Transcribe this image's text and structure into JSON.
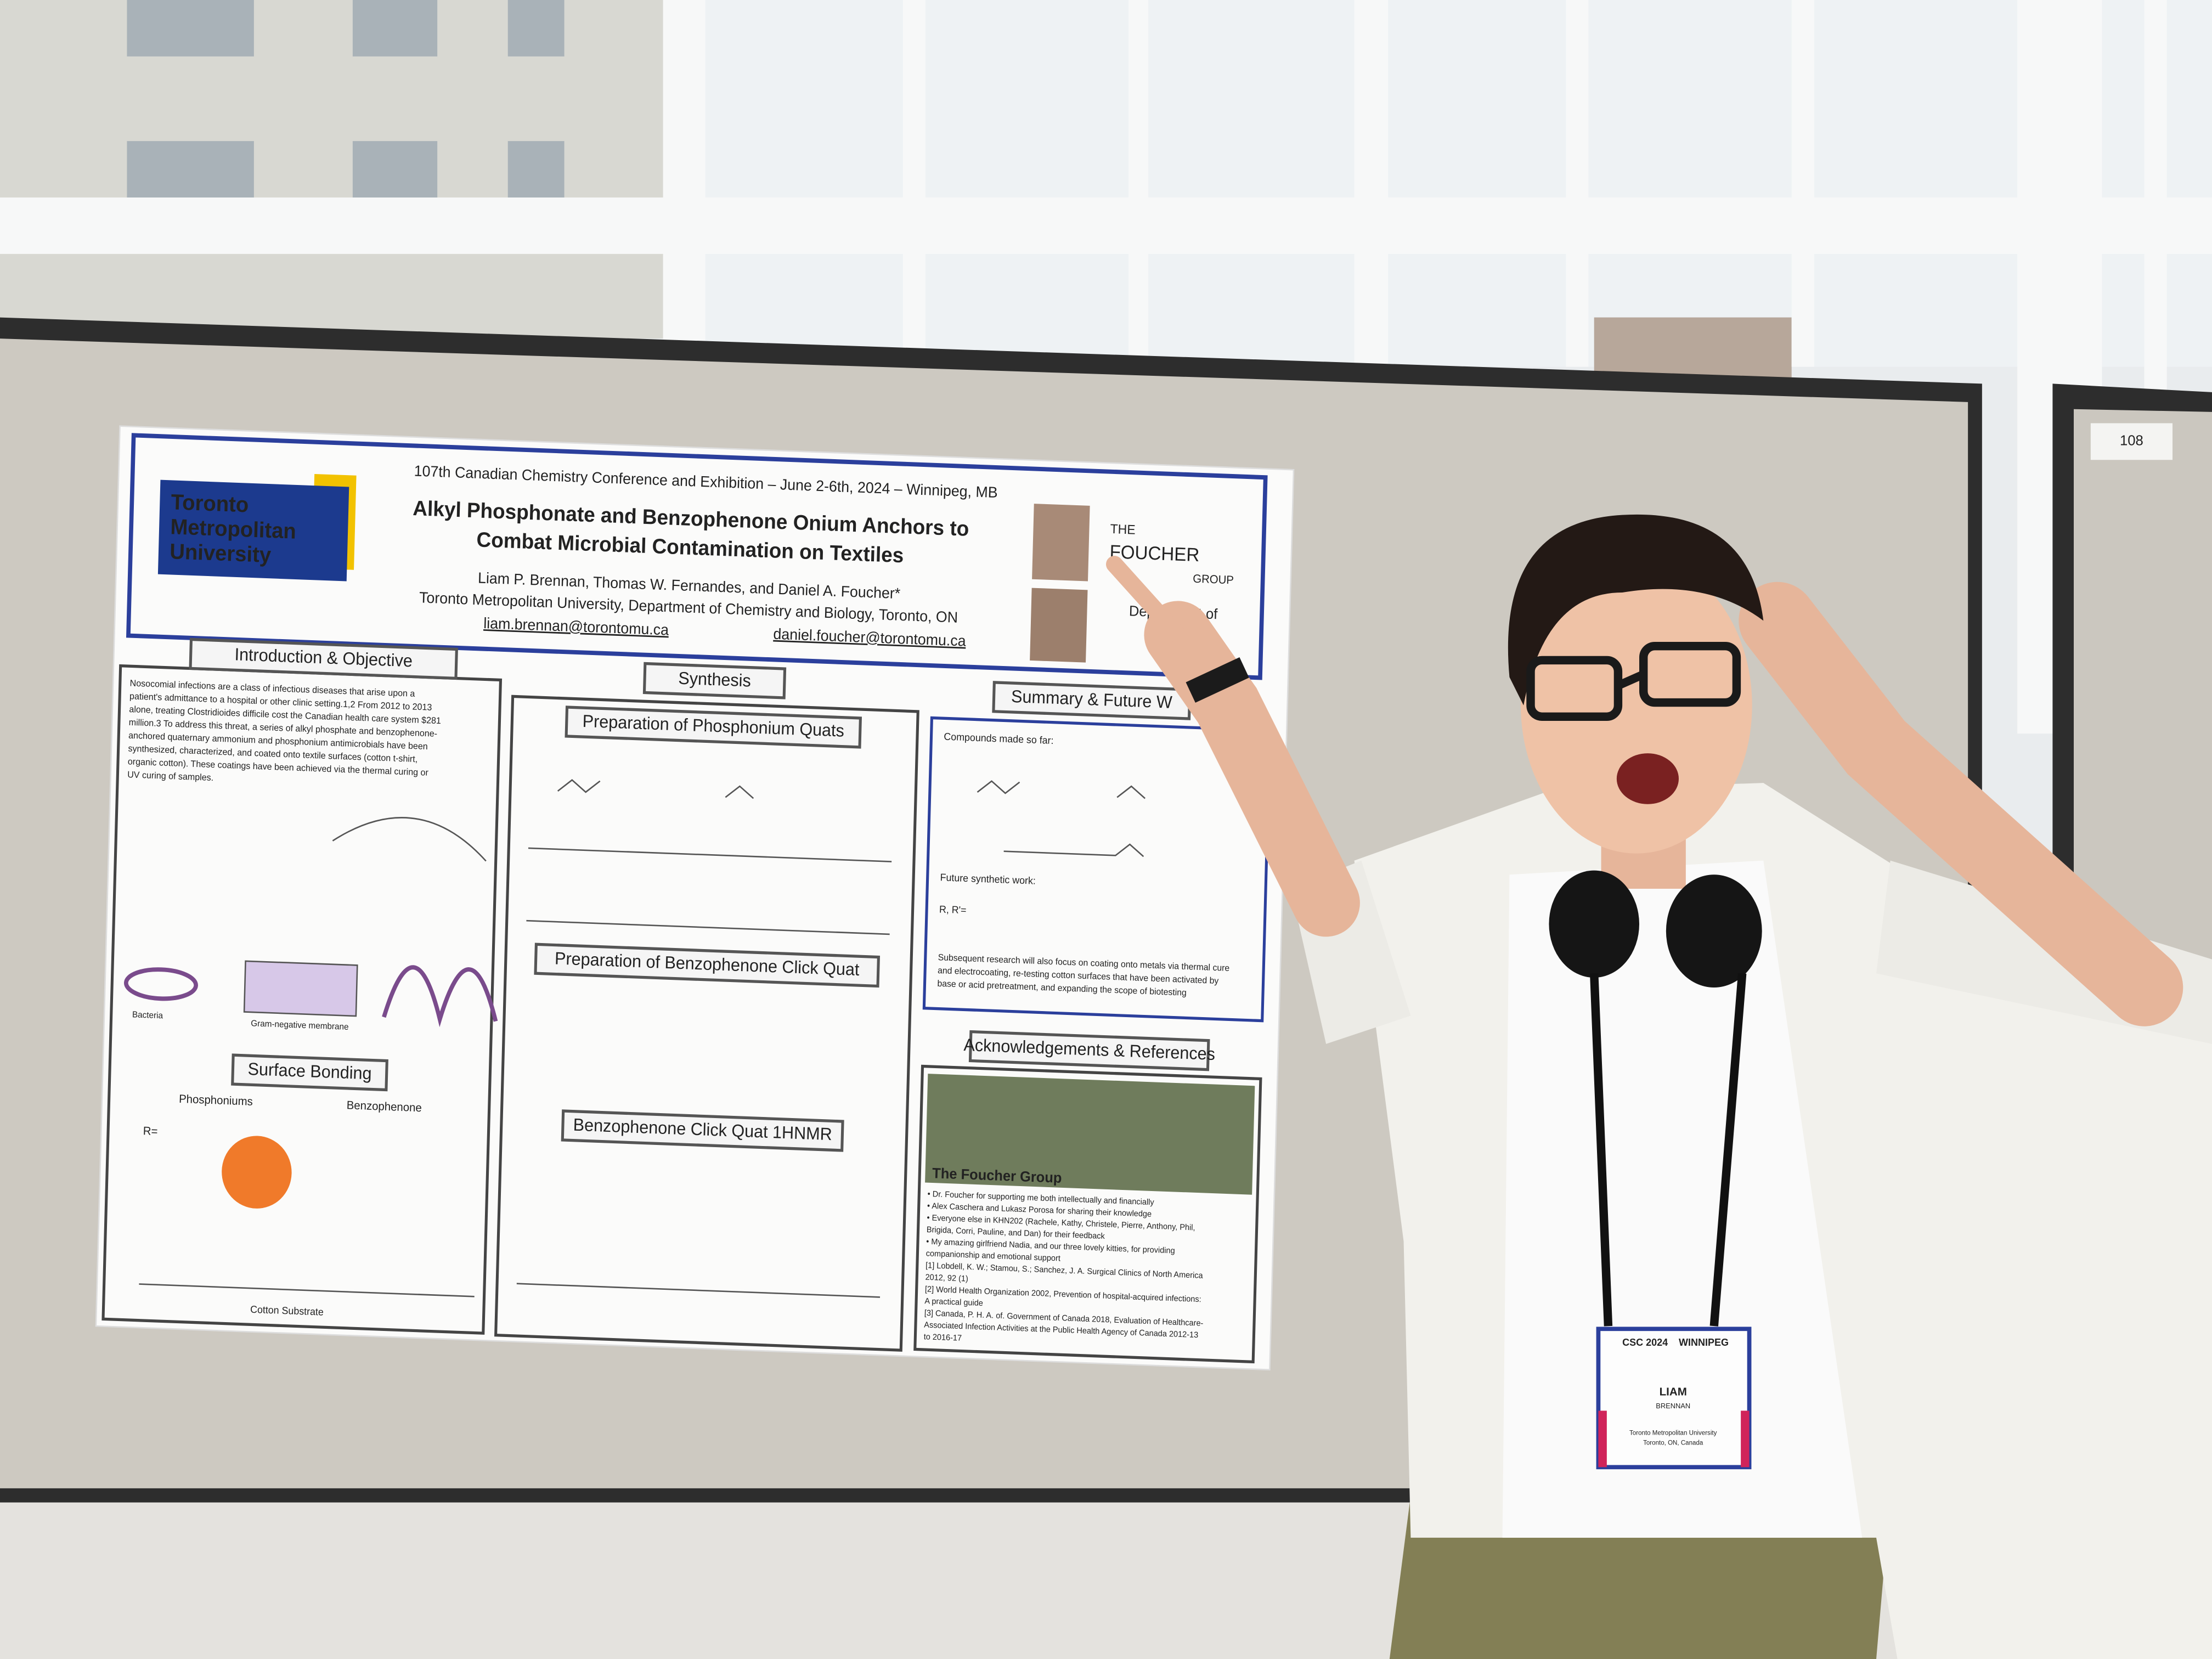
{
  "panel_number": "108",
  "poster": {
    "conference": "107th Canadian Chemistry Conference and Exhibition – June 2-6th, 2024 – Winnipeg, MB",
    "logo": [
      "Toronto",
      "Metropolitan",
      "University"
    ],
    "title": [
      "Alkyl Phosphonate and Benzophenone Onium Anchors to",
      "Combat Microbial Contamination on Textiles"
    ],
    "authors": "Liam P. Brennan, Thomas W. Fernandes, and Daniel A. Foucher*",
    "affiliation": "Toronto Metropolitan University, Department of Chemistry and Biology, Toronto, ON",
    "emails": [
      "liam.brennan@torontomu.ca",
      "daniel.foucher@torontomu.ca"
    ],
    "group": [
      "THE",
      "FOUCHER",
      "GROUP"
    ],
    "department": "Department of",
    "intro": {
      "heading": "Introduction & Objective",
      "lines": [
        "Nosocomial infections are a class of infectious diseases that arise upon a",
        "patient's admittance to a hospital or other clinic setting.1,2 From 2012 to 2013",
        "alone, treating Clostridioides difficile cost the Canadian health care system $281",
        "million.3 To address this threat, a series of alkyl phosphate and benzophenone-",
        "anchored quaternary ammonium and phosphonium antimicrobials have been",
        "synthesized, characterized, and coated onto textile surfaces (cotton t-shirt,",
        "organic cotton). These coatings have been achieved via the thermal curing or",
        "UV curing of samples."
      ],
      "labels": [
        "Bacteria",
        "Gram-negative membrane"
      ]
    },
    "surface": {
      "heading": "Surface Bonding",
      "labels": [
        "Phosphoniums",
        "Benzophenone",
        "R=",
        "Cotton Substrate"
      ]
    },
    "synthesis": {
      "heading": "Synthesis",
      "subheadings": [
        "Preparation of Phosphonium Quats",
        "Preparation of Benzophenone Click Quat",
        "Benzophenone Click Quat 1HNMR"
      ]
    },
    "summary": {
      "heading": "Summary & Future W",
      "made": "Compounds made so far:",
      "future": "Future synthetic work:",
      "r_label": "R, R'=",
      "lines": [
        "Subsequent research will also focus on coating onto metals via thermal cure",
        "and electrocoating, re-testing cotton surfaces that have been activated by",
        "base or acid pretreatment, and expanding the scope of biotesting"
      ]
    },
    "acknowledgements": {
      "heading": "Acknowledgements & References",
      "photo_caption": "The Foucher Group",
      "lines": [
        "• Dr. Foucher for supporting me both intellectually and financially",
        "• Alex Caschera and Lukasz Porosa for sharing their knowledge",
        "• Everyone else in KHN202 (Rachele, Kathy, Christele, Pierre, Anthony, Phil,",
        "  Brigida, Corri, Pauline, and Dan) for their feedback",
        "• My amazing girlfriend Nadia, and our three lovely kitties, for providing",
        "  companionship and emotional support",
        "[1] Lobdell, K. W.; Stamou, S.; Sanchez, J. A. Surgical Clinics of North America",
        "2012, 92 (1)",
        "[2] World Health Organization 2002, Prevention of hospital-acquired infections:",
        "A practical guide",
        "[3] Canada, P. H. A. of. Government of Canada 2018, Evaluation of Healthcare-",
        "Associated Infection Activities at the Public Health Agency of Canada 2012-13",
        "to 2016-17"
      ]
    }
  },
  "badge": {
    "event": [
      "CSC 2024",
      "WINNIPEG"
    ],
    "first_name": "LIAM",
    "last_name": "BRENNAN",
    "organization": [
      "Toronto Metropolitan University",
      "Toronto, ON, Canada"
    ]
  }
}
